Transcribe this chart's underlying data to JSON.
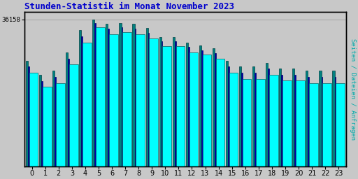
{
  "title": "Stunden-Statistik im Monat November 2023",
  "ylabel_right": "Seiten / Dateien / Anfragen",
  "ytick_label": "36158",
  "ytick_val": 36158,
  "ymax": 38000,
  "categories": [
    0,
    1,
    2,
    3,
    4,
    5,
    6,
    7,
    8,
    9,
    10,
    11,
    12,
    13,
    14,
    15,
    16,
    17,
    18,
    19,
    20,
    21,
    22,
    23
  ],
  "values_seiten": [
    26000,
    22500,
    23500,
    28000,
    33500,
    36158,
    35000,
    35200,
    35000,
    34000,
    31800,
    31800,
    30400,
    29800,
    29000,
    26000,
    24500,
    24500,
    25500,
    24000,
    24000,
    23500,
    23500,
    23500
  ],
  "values_dateien": [
    24500,
    21000,
    22000,
    26500,
    32000,
    35200,
    33800,
    34200,
    33800,
    32800,
    30800,
    30800,
    29400,
    28600,
    27800,
    24500,
    23000,
    23000,
    24000,
    22500,
    22500,
    22000,
    22000,
    22000
  ],
  "values_anfragen": [
    23000,
    19500,
    20500,
    25000,
    30500,
    34200,
    32500,
    33000,
    32500,
    31500,
    29500,
    29500,
    28000,
    27500,
    26500,
    23000,
    21500,
    21500,
    22500,
    21200,
    21200,
    20500,
    20500,
    20500
  ],
  "color_seiten": "#008080",
  "color_dateien": "#0000AA",
  "color_anfragen": "#00FFFF",
  "color_anfragen_edge": "#008080",
  "bg_color": "#C8C8C8",
  "plot_bg_color": "#C8C8C8",
  "title_color": "#0000CC",
  "ylabel_right_color": "#00AAAA",
  "grid_color": "#AAAAAA"
}
